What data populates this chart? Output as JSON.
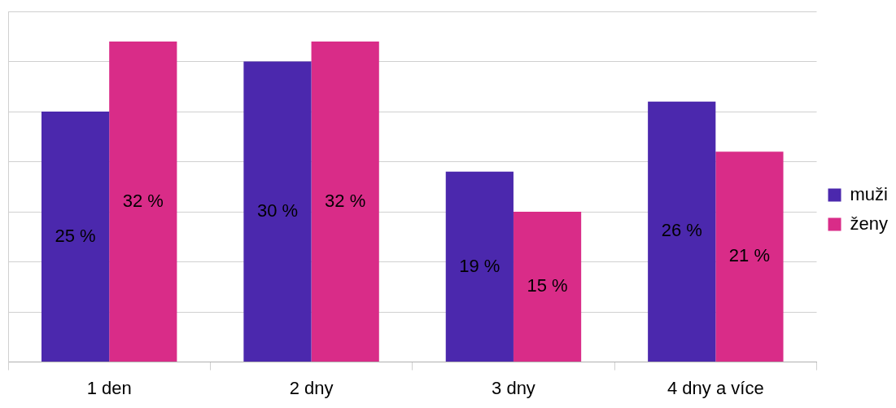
{
  "chart_data": {
    "type": "bar",
    "categories": [
      "1 den",
      "2 dny",
      "3 dny",
      "4 dny a více"
    ],
    "series": [
      {
        "name": "muži",
        "color": "#4b28ad",
        "values": [
          25,
          30,
          19,
          26
        ],
        "value_labels": [
          "25 %",
          "30 %",
          "19 %",
          "26 %"
        ]
      },
      {
        "name": "ženy",
        "color": "#d92c88",
        "values": [
          32,
          32,
          15,
          21
        ],
        "value_labels": [
          "32 %",
          "32 %",
          "15 %",
          "21 %"
        ]
      }
    ],
    "grid": "y",
    "legend": "right",
    "tick_labels": "x"
  }
}
